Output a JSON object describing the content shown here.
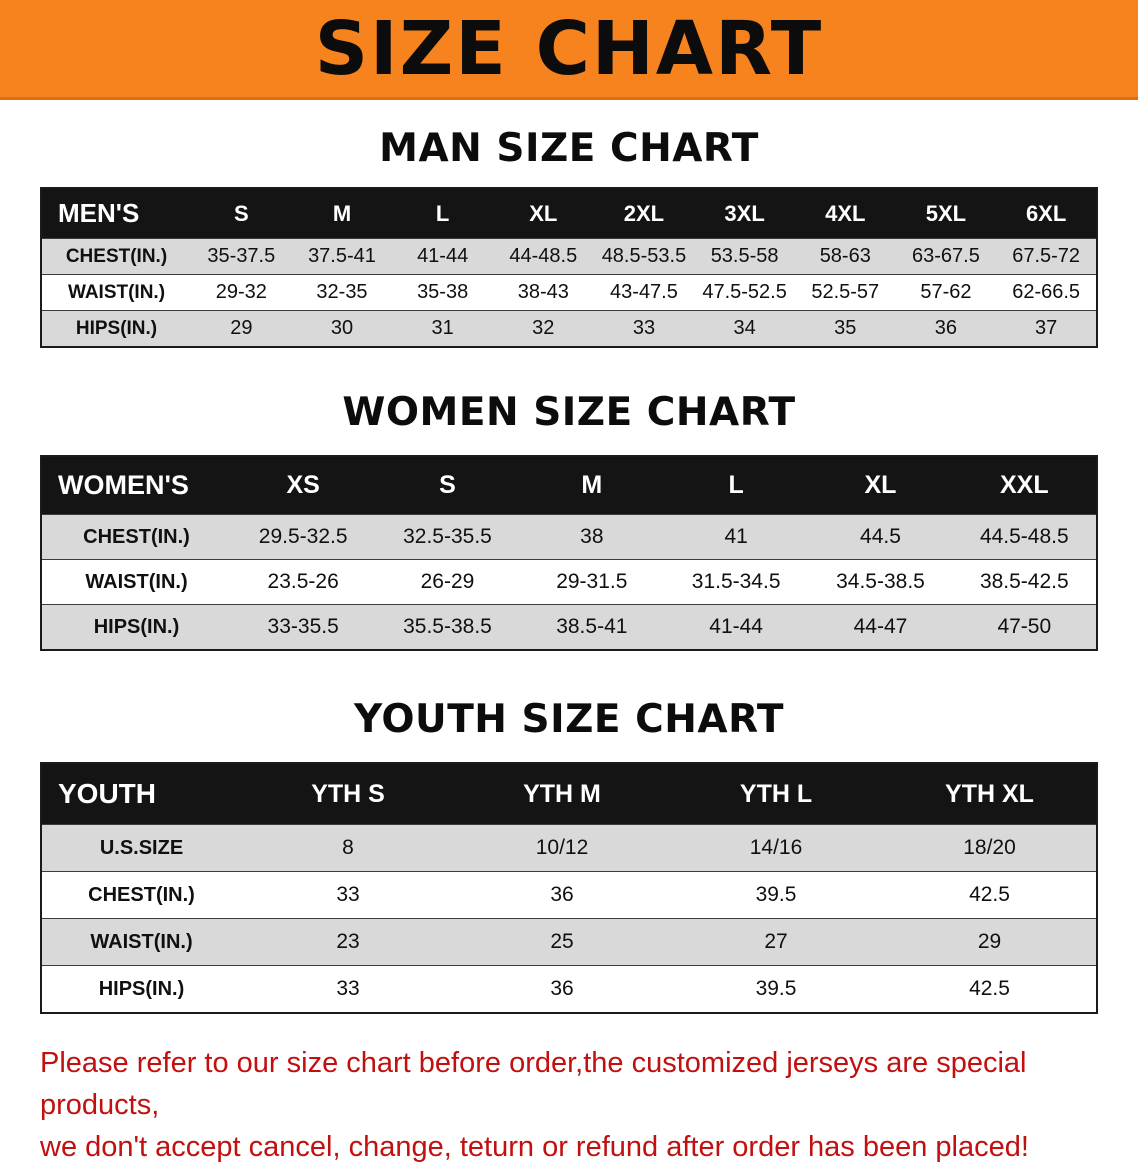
{
  "banner": {
    "title": "SIZE CHART"
  },
  "colors": {
    "banner_bg": "#f6831d",
    "header_bg": "#141414",
    "row_alt": "#d9d9d9",
    "warning_text": "#c21010"
  },
  "men": {
    "heading": "MAN SIZE CHART",
    "table": {
      "header": [
        "MEN'S",
        "S",
        "M",
        "L",
        "XL",
        "2XL",
        "3XL",
        "4XL",
        "5XL",
        "6XL"
      ],
      "rows": [
        [
          "CHEST(IN.)",
          "35-37.5",
          "37.5-41",
          "41-44",
          "44-48.5",
          "48.5-53.5",
          "53.5-58",
          "58-63",
          "63-67.5",
          "67.5-72"
        ],
        [
          "WAIST(IN.)",
          "29-32",
          "32-35",
          "35-38",
          "38-43",
          "43-47.5",
          "47.5-52.5",
          "52.5-57",
          "57-62",
          "62-66.5"
        ],
        [
          "HIPS(IN.)",
          "29",
          "30",
          "31",
          "32",
          "33",
          "34",
          "35",
          "36",
          "37"
        ]
      ]
    }
  },
  "women": {
    "heading": "WOMEN SIZE CHART",
    "table": {
      "header": [
        "WOMEN'S",
        "XS",
        "S",
        "M",
        "L",
        "XL",
        "XXL"
      ],
      "rows": [
        [
          "CHEST(IN.)",
          "29.5-32.5",
          "32.5-35.5",
          "38",
          "41",
          "44.5",
          "44.5-48.5"
        ],
        [
          "WAIST(IN.)",
          "23.5-26",
          "26-29",
          "29-31.5",
          "31.5-34.5",
          "34.5-38.5",
          "38.5-42.5"
        ],
        [
          "HIPS(IN.)",
          "33-35.5",
          "35.5-38.5",
          "38.5-41",
          "41-44",
          "44-47",
          "47-50"
        ]
      ]
    }
  },
  "youth": {
    "heading": "YOUTH SIZE CHART",
    "table": {
      "header": [
        "YOUTH",
        "YTH S",
        "YTH M",
        "YTH L",
        "YTH XL"
      ],
      "rows": [
        [
          "U.S.SIZE",
          "8",
          "10/12",
          "14/16",
          "18/20"
        ],
        [
          "CHEST(IN.)",
          "33",
          "36",
          "39.5",
          "42.5"
        ],
        [
          "WAIST(IN.)",
          "23",
          "25",
          "27",
          "29"
        ],
        [
          "HIPS(IN.)",
          "33",
          "36",
          "39.5",
          "42.5"
        ]
      ]
    }
  },
  "footer": {
    "line1": "Please refer to our size chart before order,the customized jerseys are special products,",
    "line2": "we don't accept cancel, change, teturn or refund after order has been placed!"
  }
}
